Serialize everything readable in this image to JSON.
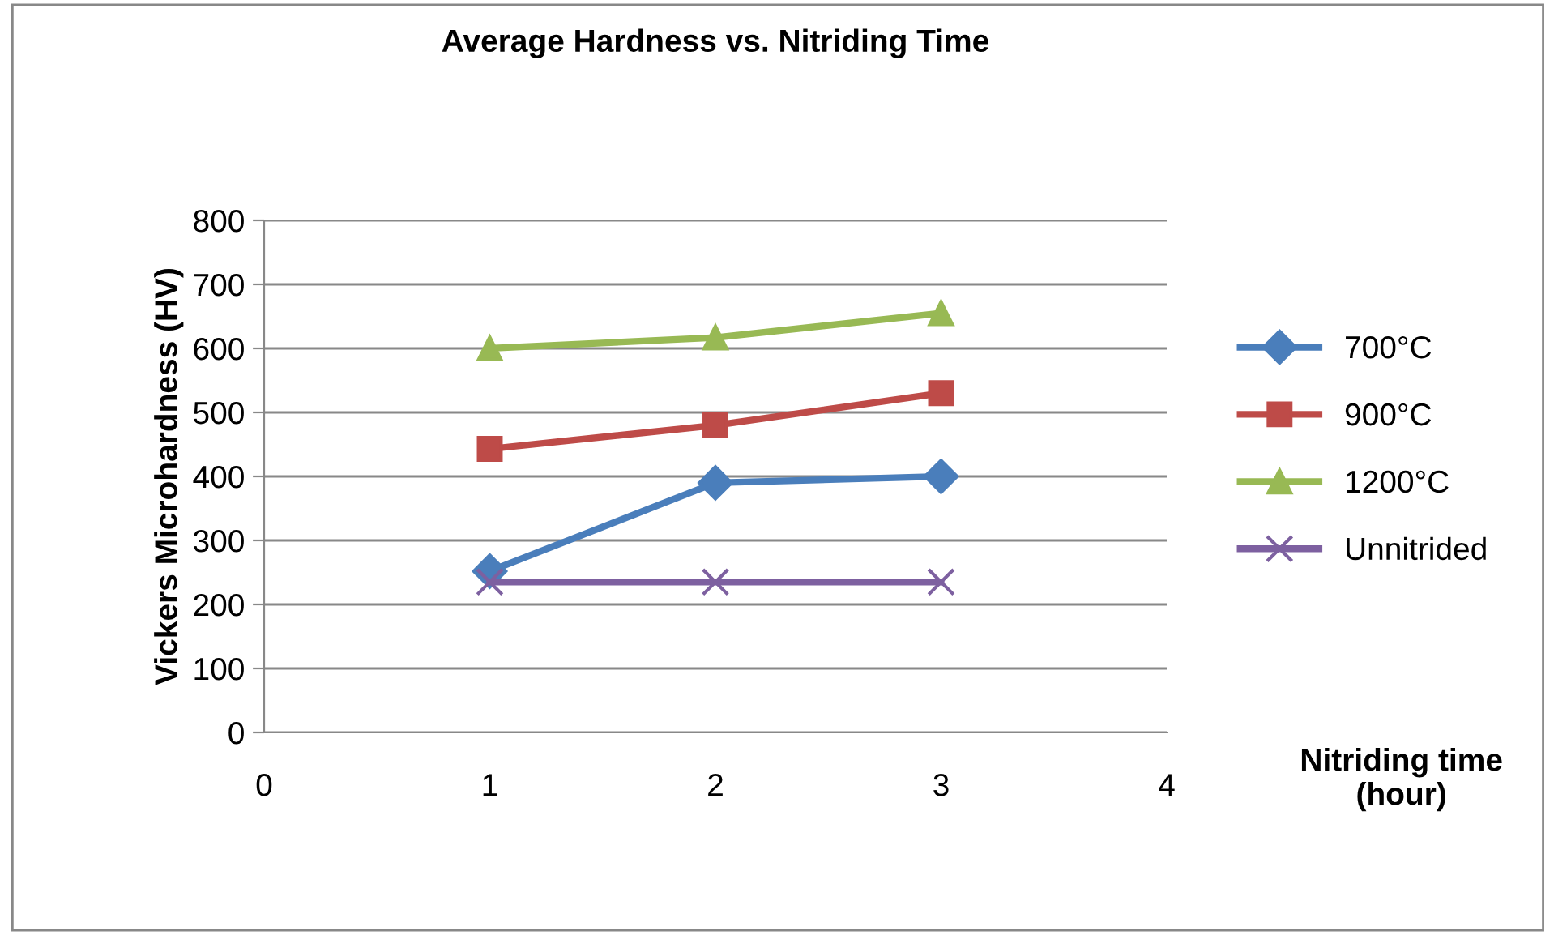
{
  "chart_data": {
    "type": "line",
    "title": "Average Hardness vs. Nitriding Time",
    "xlabel": "Nitriding time\n(hour)",
    "ylabel": "Vickers Microhardness (HV)",
    "x": [
      1,
      2,
      3
    ],
    "xlim": [
      0,
      4
    ],
    "xticks": [
      0,
      1,
      2,
      3,
      4
    ],
    "ylim": [
      0,
      800
    ],
    "yticks": [
      0,
      100,
      200,
      300,
      400,
      500,
      600,
      700,
      800
    ],
    "grid": "y",
    "legend": "right",
    "series": [
      {
        "name": "700°C",
        "color": "#4a7ebb",
        "marker": "diamond",
        "values": [
          252,
          390,
          400
        ]
      },
      {
        "name": "900°C",
        "color": "#be4b48",
        "marker": "square",
        "values": [
          443,
          480,
          530
        ]
      },
      {
        "name": "1200°C",
        "color": "#98b954",
        "marker": "triangle",
        "values": [
          600,
          617,
          655
        ]
      },
      {
        "name": "Unnitrided",
        "color": "#7d60a0",
        "marker": "cross",
        "values": [
          235,
          235,
          235
        ]
      }
    ]
  }
}
